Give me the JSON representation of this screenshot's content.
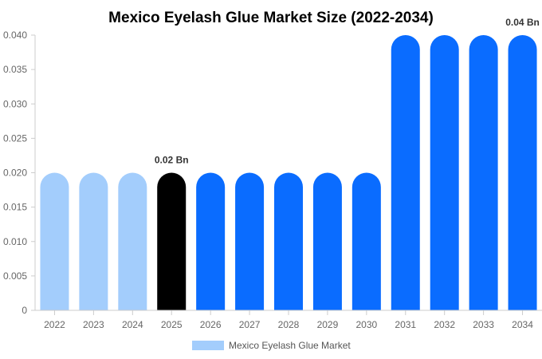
{
  "chart_data": {
    "type": "bar",
    "title": "Mexico Eyelash Glue Market Size (2022-2034)",
    "categories": [
      "2022",
      "2023",
      "2024",
      "2025",
      "2026",
      "2027",
      "2028",
      "2029",
      "2030",
      "2031",
      "2032",
      "2033",
      "2034"
    ],
    "series": [
      {
        "name": "Mexico Eyelash Glue Market",
        "values": [
          0.02,
          0.02,
          0.02,
          0.02,
          0.02,
          0.02,
          0.02,
          0.02,
          0.02,
          0.04,
          0.04,
          0.04,
          0.04
        ]
      }
    ],
    "ylim": [
      0,
      0.04
    ],
    "yticks": [
      "0",
      "0.005",
      "0.010",
      "0.015",
      "0.020",
      "0.025",
      "0.030",
      "0.035",
      "0.040"
    ],
    "data_labels": [
      {
        "category": "2025",
        "text": "0.02 Bn"
      },
      {
        "category": "2034",
        "text": "0.04 Bn"
      }
    ],
    "bar_colors": {
      "historical": "#a3cdfc",
      "current": "#000000",
      "forecast": "#0a6cff"
    },
    "legend": {
      "label": "Mexico Eyelash Glue Market",
      "color": "#a3cdfc",
      "placement": "bottom-center"
    },
    "grid": false
  }
}
